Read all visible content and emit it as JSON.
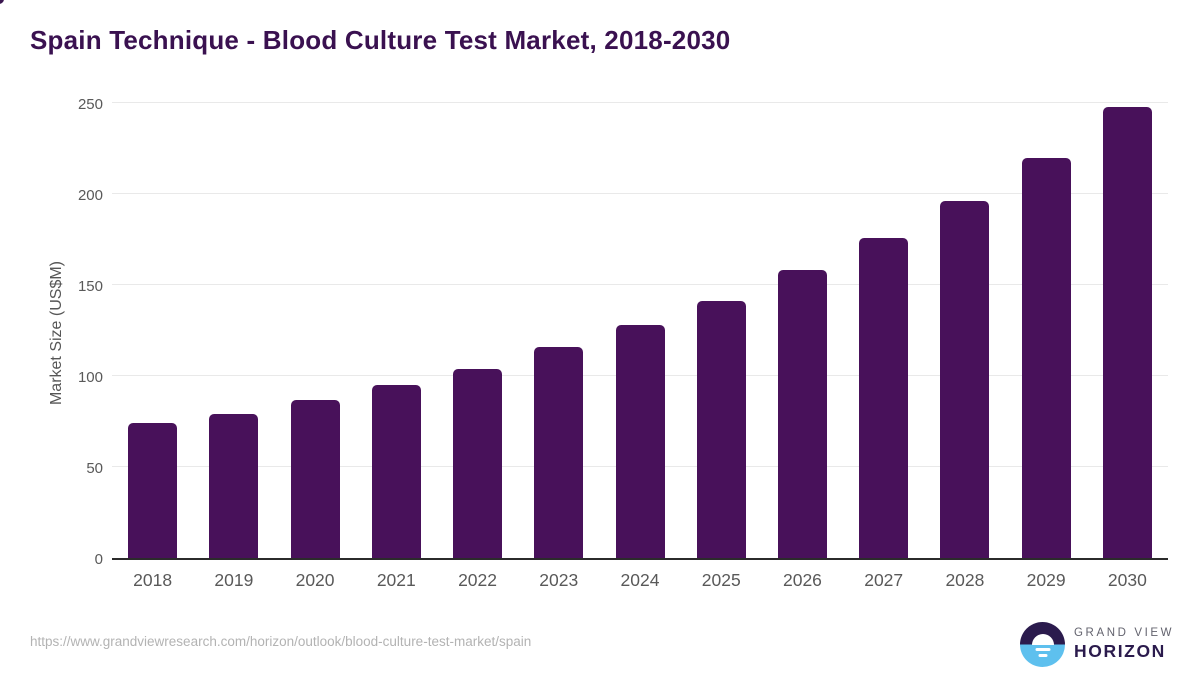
{
  "title": "Spain Technique - Blood Culture Test Market, 2018-2030",
  "chart_data": {
    "type": "bar",
    "title": "Spain Technique - Blood Culture Test Market, 2018-2030",
    "categories": [
      "2018",
      "2019",
      "2020",
      "2021",
      "2022",
      "2023",
      "2024",
      "2025",
      "2026",
      "2027",
      "2028",
      "2029",
      "2030"
    ],
    "values": [
      74,
      79,
      87,
      95,
      104,
      116,
      128,
      141,
      158,
      176,
      196,
      220,
      248
    ],
    "xlabel": "",
    "ylabel": "Market Size (US$M)",
    "ylim": [
      0,
      250
    ],
    "yticks": [
      0,
      50,
      100,
      150,
      200,
      250
    ],
    "grid": "horizontal",
    "legend": "none",
    "bar_color": "#48115a"
  },
  "colors": {
    "bar": "#48115a",
    "title_text": "#3a1150",
    "axis_text": "#595959",
    "gridline": "#e9e9e9",
    "baseline": "#2b2b2b",
    "url_text": "#b3b3b3",
    "logo_dark": "#2b1b4d",
    "logo_blue": "#5ec0ee"
  },
  "footer": {
    "source_url": "https://www.grandviewresearch.com/horizon/outlook/blood-culture-test-market/spain",
    "logo_line1": "GRAND VIEW",
    "logo_line2": "HORIZON"
  }
}
